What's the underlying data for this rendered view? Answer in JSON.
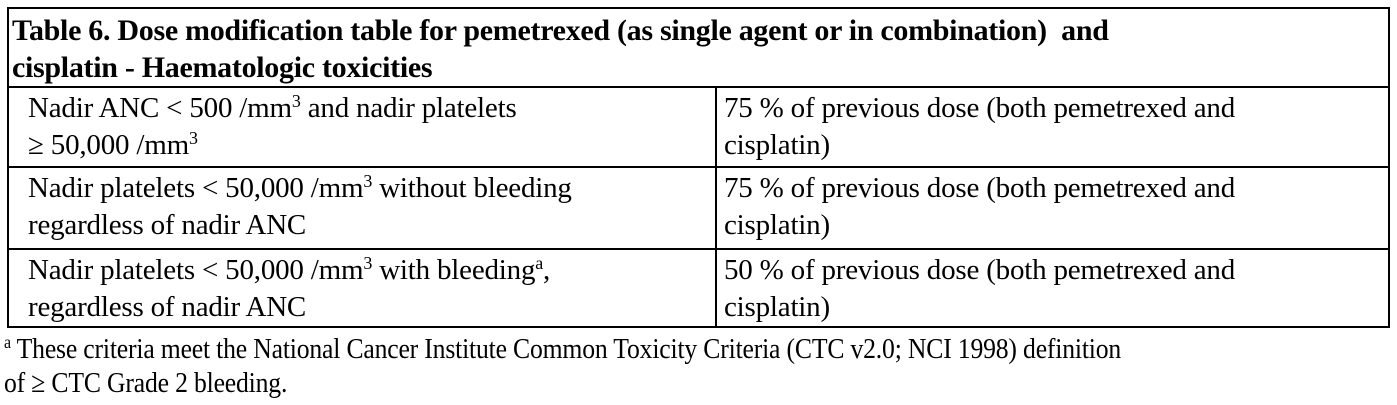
{
  "document": {
    "table": {
      "title_lines": [
        "Table 6. Dose modification table for pemetrexed (as single agent or in combination)  and",
        "cisplatin - Haematologic toxicities"
      ],
      "rows": [
        {
          "condition_lines": [
            "Nadir ANC < 500 /mm^{3} and nadir platelets",
            "≥ 50,000 /mm^{3}"
          ],
          "action_lines": [
            "75 % of previous dose (both pemetrexed and",
            "cisplatin)"
          ]
        },
        {
          "condition_lines": [
            "Nadir platelets < 50,000 /mm^{3} without bleeding",
            "regardless of nadir ANC"
          ],
          "action_lines": [
            "75 % of previous dose (both pemetrexed and",
            "cisplatin)"
          ]
        },
        {
          "condition_lines": [
            "Nadir platelets < 50,000 /mm^{3} with bleeding^{a},",
            "regardless of nadir ANC"
          ],
          "action_lines": [
            "50 % of previous dose (both pemetrexed and",
            "cisplatin)"
          ]
        }
      ],
      "footnote_lines": [
        "^{a} These criteria meet the National Cancer Institute Common Toxicity Criteria (CTC v2.0; NCI 1998) definition",
        "of ≥ CTC Grade 2 bleeding."
      ]
    },
    "colors": {
      "text": "#000000",
      "border": "#000000",
      "background": "#ffffff"
    }
  }
}
